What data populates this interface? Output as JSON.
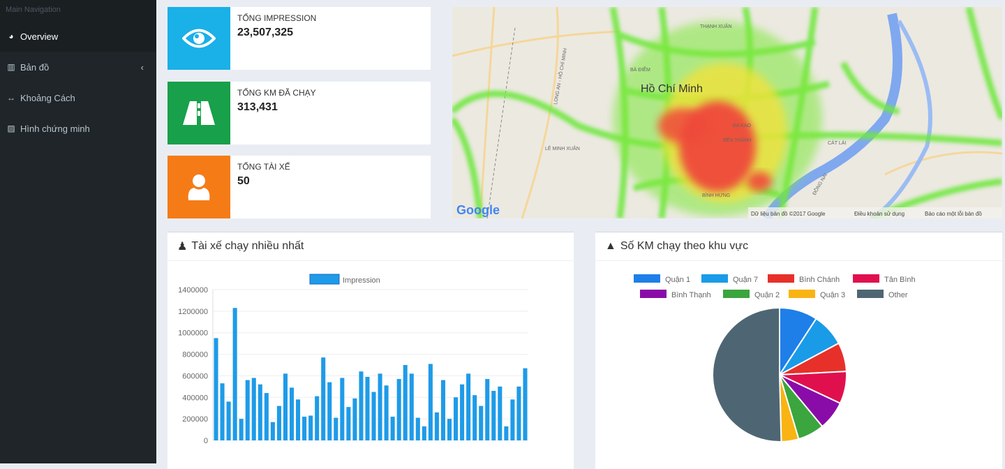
{
  "sidebar": {
    "header": "Main Navigation",
    "items": [
      {
        "label": "Overview",
        "icon": "dashboard-icon"
      },
      {
        "label": "Bản đồ",
        "icon": "map-icon"
      },
      {
        "label": "Khoảng Cách",
        "icon": "arrows-h-icon"
      },
      {
        "label": "Hình chứng minh",
        "icon": "picture-icon"
      }
    ]
  },
  "stats": [
    {
      "label": "Tổng Impression",
      "value": "23,507,325",
      "color": "#1ab0e8",
      "icon": "eye-icon"
    },
    {
      "label": "Tổng KM đã chạy",
      "value": "313,431",
      "color": "#18a04a",
      "icon": "road-icon"
    },
    {
      "label": "Tổng tài xế",
      "value": "50",
      "color": "#f57b17",
      "icon": "user-icon"
    }
  ],
  "map": {
    "city": "Hồ Chí Minh",
    "places": [
      "THẠNH XUÂN",
      "BÀ ĐIỂM",
      "LÊ MINH XUÂN",
      "ĐA KAO",
      "BẾN THÀNH",
      "CÁT LÁI",
      "BÌNH HƯNG",
      "LONG AN - HỒ CHÍ MINH",
      "ĐỒNG NAI"
    ],
    "logo": "Google",
    "footer": {
      "data": "Dữ liệu bản đồ ©2017 Google",
      "terms": "Điều khoản sử dụng",
      "report": "Báo cáo một lỗi bản đồ"
    }
  },
  "panels": {
    "bar_title": "Tài xế chạy nhiều nhất",
    "pie_title": "Số KM chạy theo khu vực"
  },
  "chart_data": [
    {
      "type": "bar",
      "title": "Tài xế chạy nhiều nhất",
      "legend": [
        "Impression"
      ],
      "color": "#1e9be8",
      "ylim": [
        0,
        1400000
      ],
      "yticks": [
        "1400000",
        "1200000",
        "1000000",
        "800000",
        "600000",
        "400000",
        "200000",
        "0"
      ],
      "values": [
        950000,
        530000,
        360000,
        1230000,
        200000,
        560000,
        580000,
        520000,
        440000,
        170000,
        320000,
        620000,
        490000,
        380000,
        220000,
        230000,
        410000,
        770000,
        540000,
        210000,
        580000,
        310000,
        390000,
        640000,
        590000,
        450000,
        620000,
        510000,
        220000,
        570000,
        700000,
        620000,
        210000,
        130000,
        710000,
        260000,
        560000,
        200000,
        400000,
        520000,
        620000,
        420000,
        320000,
        570000,
        460000,
        500000,
        130000,
        380000,
        500000,
        670000
      ]
    },
    {
      "type": "pie",
      "title": "Số KM chạy theo khu vực",
      "labels": [
        "Quận 1",
        "Quận 7",
        "Bình Chánh",
        "Tân Bình",
        "Bình Thạnh",
        "Quận 2",
        "Quận 3",
        "Other"
      ],
      "values": [
        9.2,
        8.0,
        7.0,
        7.8,
        7.0,
        6.4,
        4.2,
        50.4
      ],
      "colors": [
        "#1e7fe8",
        "#1a9be8",
        "#e8302a",
        "#e0104e",
        "#8a0ca8",
        "#3ba53e",
        "#f9b413",
        "#4e6674"
      ]
    }
  ]
}
